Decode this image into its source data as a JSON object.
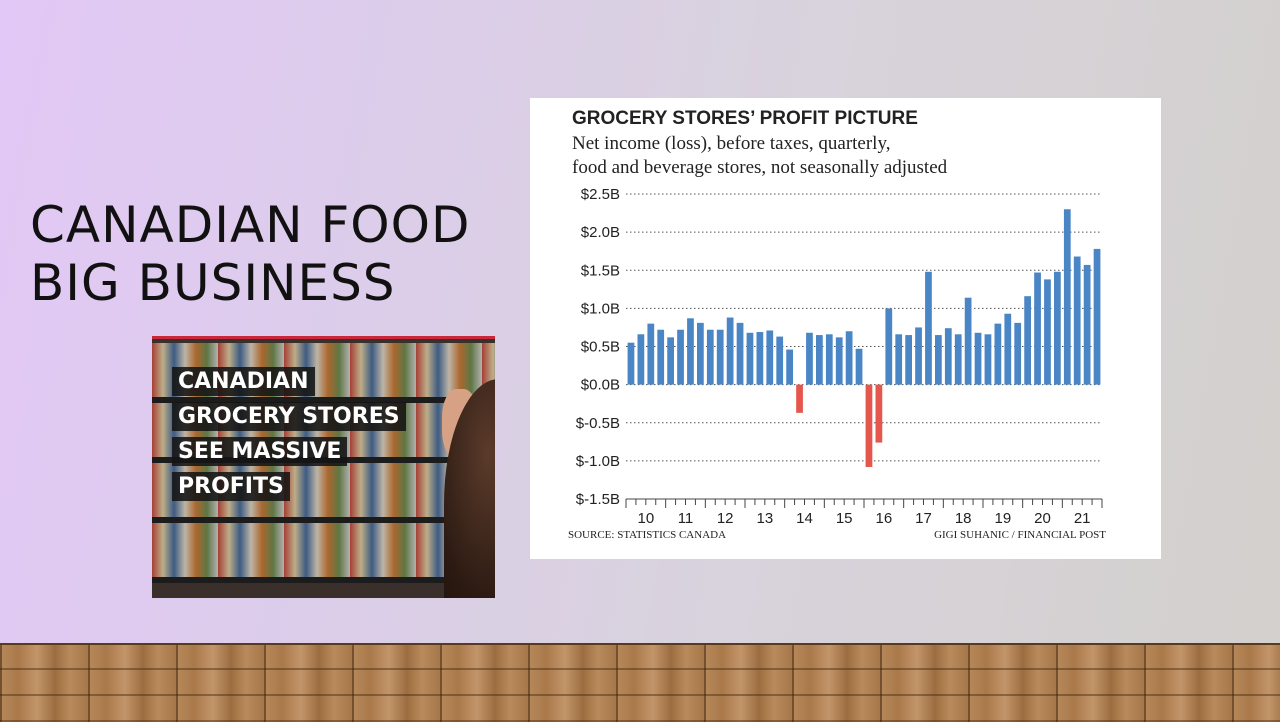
{
  "slide": {
    "title_line1": "CANADIAN FOOD",
    "title_line2": "BIG BUSINESS",
    "colors": {
      "background": "#dcd0e4",
      "title": "#111111",
      "accent": "#c8283a"
    }
  },
  "photo": {
    "caption_lines": [
      "CANADIAN",
      "GROCERY STORES",
      "SEE MASSIVE",
      "PROFITS"
    ],
    "icon": "grocery-shelves-photo"
  },
  "chart_data": {
    "type": "bar",
    "title": "GROCERY STORES’ PROFIT PICTURE",
    "subtitle_lines": [
      "Net income (loss), before taxes, quarterly,",
      "food and beverage stores, not seasonally adjusted"
    ],
    "source": "SOURCE: STATISTICS CANADA",
    "credit": "GIGI SUHANIC  / FINANCIAL POST",
    "ylim": [
      -1.5,
      2.5
    ],
    "yticks": [
      2.5,
      2.0,
      1.5,
      1.0,
      0.5,
      0.0,
      -0.5,
      -1.0,
      -1.5
    ],
    "ytick_labels": [
      "$2.5B",
      "$2.0B",
      "$1.5B",
      "$1.0B",
      "$0.5B",
      "$0.0B",
      "$-0.5B",
      "$-1.0B",
      "$-1.5B"
    ],
    "xtick_labels": [
      "10",
      "11",
      "12",
      "13",
      "14",
      "15",
      "16",
      "17",
      "18",
      "19",
      "20",
      "21"
    ],
    "grid": "horizontal-dotted",
    "positive_color": "#4a86c5",
    "negative_color": "#e5574c",
    "values": [
      0.55,
      0.66,
      0.8,
      0.72,
      0.62,
      0.72,
      0.87,
      0.81,
      0.72,
      0.72,
      0.88,
      0.81,
      0.68,
      0.69,
      0.71,
      0.63,
      0.46,
      -0.37,
      0.68,
      0.65,
      0.66,
      0.62,
      0.7,
      0.47,
      -1.08,
      -0.76,
      1.0,
      0.66,
      0.65,
      0.75,
      1.48,
      0.65,
      0.74,
      0.66,
      1.14,
      0.68,
      0.66,
      0.8,
      0.93,
      0.81,
      1.16,
      1.47,
      1.38,
      1.48,
      2.3,
      1.68,
      1.57,
      1.78
    ],
    "year_first_bar_index": [
      0,
      4,
      8,
      12,
      16,
      20,
      24,
      28,
      32,
      36,
      40,
      44
    ]
  }
}
